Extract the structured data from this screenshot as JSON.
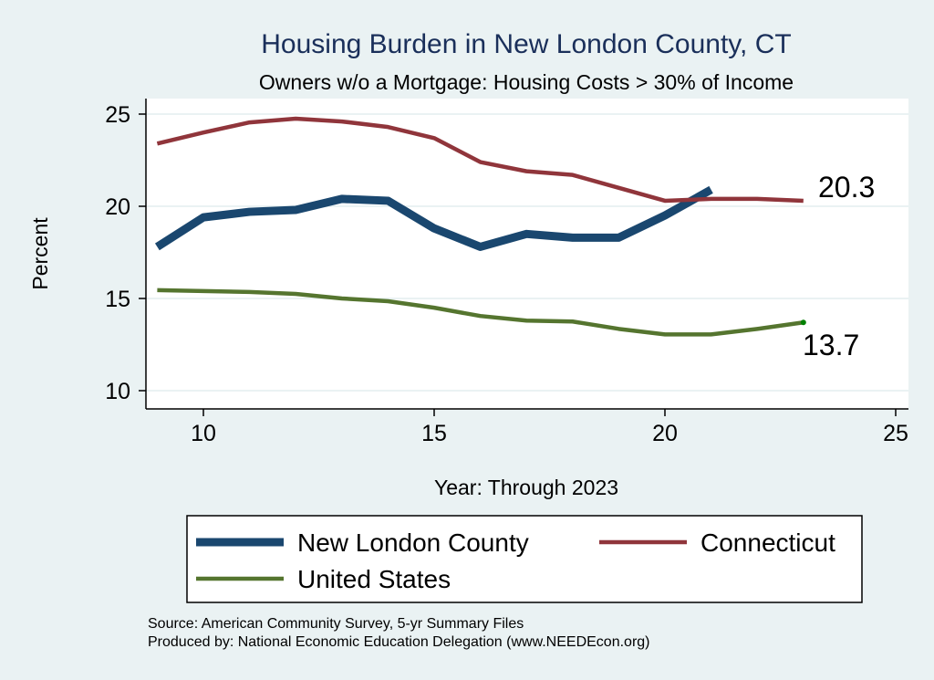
{
  "chart_data": {
    "type": "line",
    "title": "Housing Burden in New London County, CT",
    "subtitle": "Owners w/o a Mortgage: Housing Costs > 30% of Income",
    "xlabel": "Year: Through 2023",
    "ylabel": "Percent",
    "xlim": [
      8.7,
      25.3
    ],
    "ylim": [
      9.0,
      25.9
    ],
    "xticks": [
      10,
      15,
      20,
      25
    ],
    "yticks": [
      10,
      15,
      20,
      25
    ],
    "grid": true,
    "legend_position": "bottom",
    "series": [
      {
        "name": "New London County",
        "color": "#1a476f",
        "width": 9,
        "x": [
          9,
          10,
          11,
          12,
          13,
          14,
          15,
          16,
          17,
          18,
          19,
          20,
          21
        ],
        "y": [
          17.8,
          19.4,
          19.7,
          19.8,
          20.4,
          20.3,
          18.8,
          17.8,
          18.5,
          18.3,
          18.3,
          19.5,
          20.9
        ]
      },
      {
        "name": "Connecticut",
        "color": "#90353b",
        "width": 4.5,
        "x": [
          9,
          10,
          11,
          12,
          13,
          14,
          15,
          16,
          17,
          18,
          19,
          20,
          21,
          22,
          23
        ],
        "y": [
          23.4,
          24.0,
          24.55,
          24.75,
          24.6,
          24.3,
          23.7,
          22.4,
          21.9,
          21.7,
          21.0,
          20.3,
          20.4,
          20.4,
          20.3
        ]
      },
      {
        "name": "United States",
        "color": "#55752f",
        "width": 4.5,
        "x": [
          9,
          10,
          11,
          12,
          13,
          14,
          15,
          16,
          17,
          18,
          19,
          20,
          21,
          22,
          23
        ],
        "y": [
          15.45,
          15.4,
          15.35,
          15.25,
          15.0,
          14.85,
          14.5,
          14.05,
          13.8,
          13.75,
          13.35,
          13.05,
          13.05,
          13.35,
          13.7
        ]
      }
    ],
    "annotations": [
      {
        "text": "20.3",
        "x": 23,
        "y": 20.3,
        "series": "Connecticut"
      },
      {
        "text": "13.7",
        "x": 23,
        "y": 13.7,
        "series": "United States"
      }
    ]
  },
  "footer": {
    "source": "Source: American Community Survey, 5-yr Summary Files",
    "producer": "Produced by: National Economic Education Delegation (www.NEEDEcon.org)"
  }
}
